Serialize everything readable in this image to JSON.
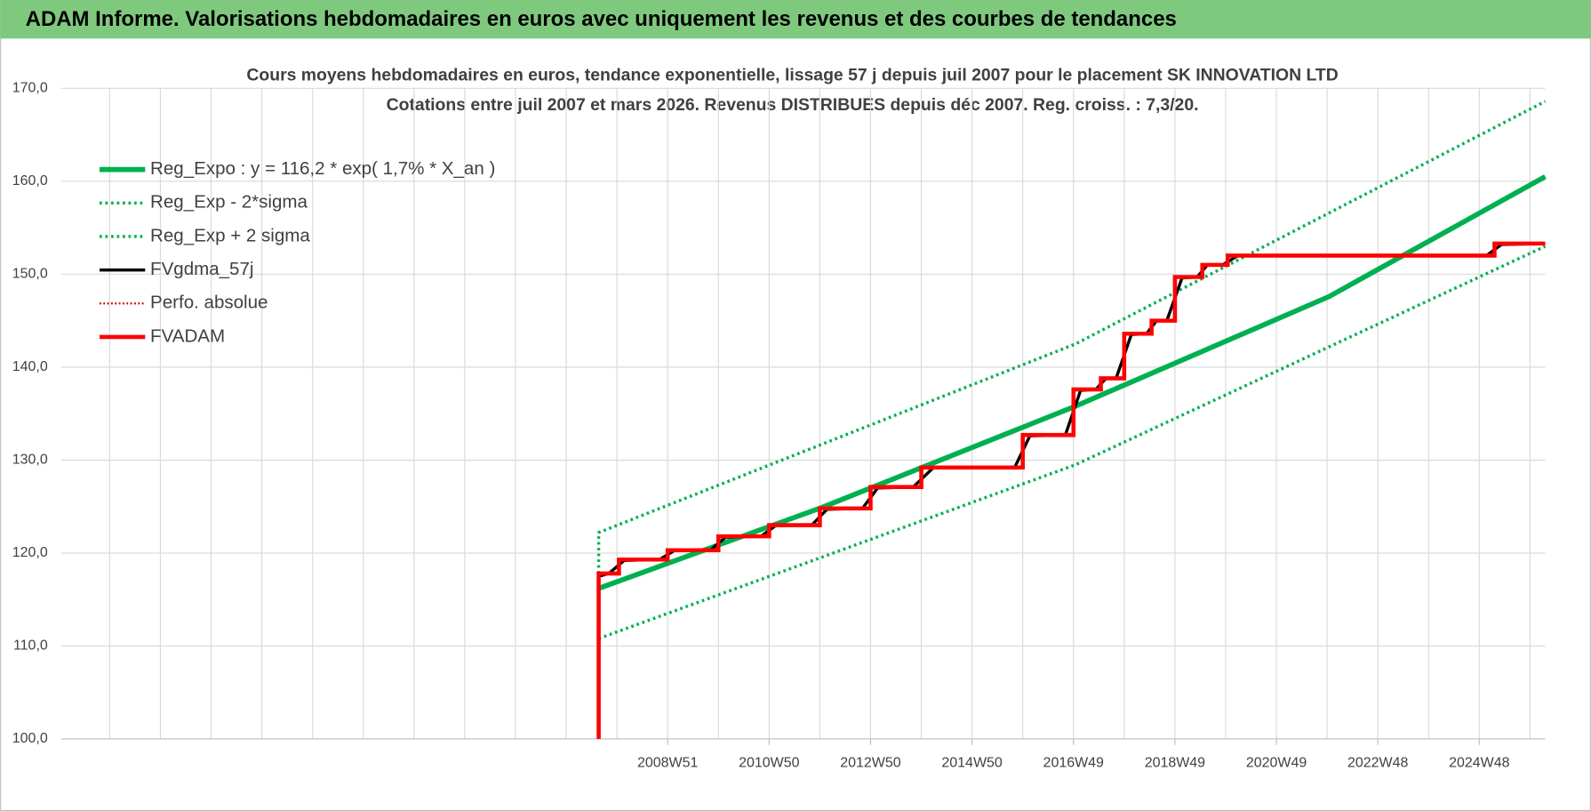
{
  "header": {
    "title": "ADAM Informe. Valorisations hebdomadaires en euros avec uniquement les revenus et des courbes de tendances"
  },
  "chart_data": {
    "type": "line",
    "title": "Cours moyens hebdomadaires en euros, tendance exponentielle, lissage 57 j depuis juil 2007 pour le placement SK INNOVATION LTD",
    "subtitle": "Cotations entre juil 2007 et mars 2026. Revenus DISTRIBUES depuis déc 2007. Reg. croiss. : 7,3/20.",
    "xlim": [
      1997.0,
      2026.26
    ],
    "xticks": [
      {
        "value": 2008.96,
        "label": "2008W51"
      },
      {
        "value": 2010.96,
        "label": "2010W50"
      },
      {
        "value": 2012.96,
        "label": "2012W50"
      },
      {
        "value": 2014.96,
        "label": "2014W50"
      },
      {
        "value": 2016.96,
        "label": "2016W49"
      },
      {
        "value": 2018.96,
        "label": "2018W49"
      },
      {
        "value": 2020.96,
        "label": "2020W49"
      },
      {
        "value": 2022.96,
        "label": "2022W48"
      },
      {
        "value": 2024.96,
        "label": "2024W48"
      }
    ],
    "xgrid": [
      1997.96,
      1998.96,
      1999.96,
      2000.96,
      2001.96,
      2002.96,
      2003.96,
      2004.96,
      2005.96,
      2006.96,
      2007.96,
      2008.96,
      2009.96,
      2010.96,
      2011.96,
      2012.96,
      2013.96,
      2014.96,
      2015.96,
      2016.96,
      2017.96,
      2018.96,
      2019.96,
      2020.96,
      2021.96,
      2022.96,
      2023.96,
      2024.96,
      2025.96
    ],
    "ylim": [
      100,
      170
    ],
    "yticks": [
      {
        "value": 100,
        "label": "100,0"
      },
      {
        "value": 110,
        "label": "110,0"
      },
      {
        "value": 120,
        "label": "120,0"
      },
      {
        "value": 130,
        "label": "130,0"
      },
      {
        "value": 140,
        "label": "140,0"
      },
      {
        "value": 150,
        "label": "150,0"
      },
      {
        "value": 160,
        "label": "160,0"
      },
      {
        "value": 170,
        "label": "170,0"
      }
    ],
    "grid": true,
    "legend": "upper left",
    "series": [
      {
        "name": "Reg_Expo : y = 116,2 * exp( 1,7% *  X_an )",
        "color": "#00b050",
        "style": "solid",
        "width": 5,
        "x": [
          2007.6,
          2012,
          2017,
          2022,
          2026.26
        ],
        "values": [
          116.2,
          124.9,
          135.8,
          147.6,
          160.5
        ]
      },
      {
        "name": "Reg_Exp - 2*sigma",
        "color": "#00b050",
        "style": "dotted",
        "width": 3,
        "x": [
          2007.6,
          2017,
          2026.26
        ],
        "values": [
          110.8,
          129.5,
          153.0
        ]
      },
      {
        "name": "Reg_Exp + 2 sigma",
        "color": "#00b050",
        "style": "dotted",
        "width": 3,
        "x": [
          2007.6,
          2007.6,
          2017,
          2026.26
        ],
        "values": [
          117.8,
          122.2,
          142.5,
          168.6
        ]
      },
      {
        "name": "FVgdma_57j",
        "color": "#000000",
        "style": "solid",
        "width": 3,
        "x": [
          2007.6,
          2007.6,
          2007.8,
          2008.1,
          2008.8,
          2009.1,
          2009.8,
          2010.1,
          2010.8,
          2011.1,
          2011.8,
          2012.1,
          2012.8,
          2013.1,
          2013.8,
          2014.2,
          2015.8,
          2016.1,
          2016.8,
          2017.1,
          2017.4,
          2017.6,
          2017.8,
          2018.1,
          2018.4,
          2018.6,
          2018.8,
          2019.1,
          2019.4,
          2019.6,
          2019.9,
          2020.2,
          2025.1,
          2025.4,
          2026.26
        ],
        "values": [
          100,
          117.5,
          117.8,
          119.2,
          119.3,
          120.3,
          120.3,
          121.7,
          121.8,
          123.0,
          123.0,
          124.7,
          124.8,
          127.0,
          127.1,
          129.2,
          129.2,
          132.6,
          132.7,
          137.5,
          137.6,
          138.8,
          138.8,
          143.5,
          143.6,
          145.0,
          145.0,
          149.6,
          149.7,
          151.0,
          151.0,
          152.0,
          152.0,
          153.2,
          153.3
        ]
      },
      {
        "name": "Perfo. absolue",
        "color": "#c00000",
        "style": "dotted",
        "width": 2,
        "x": [
          2007.6,
          2007.6,
          2008.0,
          2008.0,
          2008.96,
          2008.96,
          2009.96,
          2009.96,
          2010.96,
          2010.96,
          2011.96,
          2011.96,
          2012.96,
          2012.96,
          2013.96,
          2013.96,
          2015.96,
          2015.96,
          2016.96,
          2016.96,
          2017.5,
          2017.5,
          2017.96,
          2017.96,
          2018.5,
          2018.5,
          2018.96,
          2018.96,
          2019.5,
          2019.5,
          2020.0,
          2020.0,
          2025.26,
          2025.26,
          2026.26
        ],
        "values": [
          100,
          117.8,
          117.8,
          119.3,
          119.3,
          120.3,
          120.3,
          121.8,
          121.8,
          123.0,
          123.0,
          124.8,
          124.8,
          127.1,
          127.1,
          129.2,
          129.2,
          132.7,
          132.7,
          137.6,
          137.6,
          138.8,
          138.8,
          143.6,
          143.6,
          145.0,
          145.0,
          149.7,
          149.7,
          151.0,
          151.0,
          152.0,
          152.0,
          153.3,
          153.3
        ]
      },
      {
        "name": "FVADAM",
        "color": "#ff0000",
        "style": "solid",
        "width": 4,
        "x": [
          2007.6,
          2007.6,
          2008.0,
          2008.0,
          2008.96,
          2008.96,
          2009.96,
          2009.96,
          2010.96,
          2010.96,
          2011.96,
          2011.96,
          2012.96,
          2012.96,
          2013.96,
          2013.96,
          2015.96,
          2015.96,
          2016.96,
          2016.96,
          2017.5,
          2017.5,
          2017.96,
          2017.96,
          2018.5,
          2018.5,
          2018.96,
          2018.96,
          2019.5,
          2019.5,
          2020.0,
          2020.0,
          2025.26,
          2025.26,
          2026.26
        ],
        "values": [
          100,
          117.8,
          117.8,
          119.3,
          119.3,
          120.3,
          120.3,
          121.8,
          121.8,
          123.0,
          123.0,
          124.8,
          124.8,
          127.1,
          127.1,
          129.2,
          129.2,
          132.7,
          132.7,
          137.6,
          137.6,
          138.8,
          138.8,
          143.6,
          143.6,
          145.0,
          145.0,
          149.7,
          149.7,
          151.0,
          151.0,
          152.0,
          152.0,
          153.3,
          153.3
        ]
      }
    ]
  }
}
